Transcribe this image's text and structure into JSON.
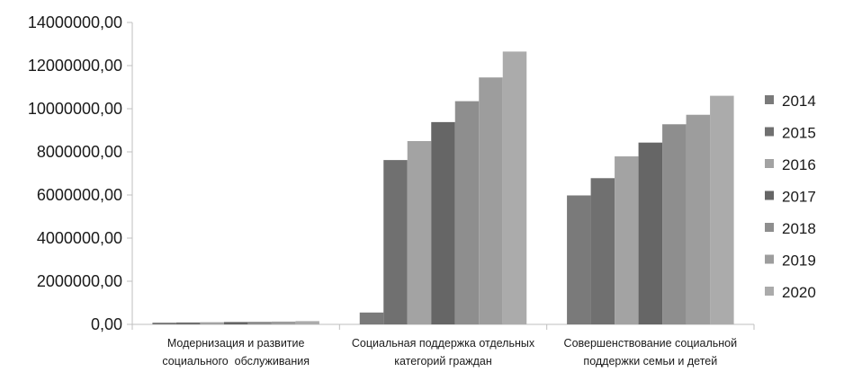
{
  "chart_data": {
    "type": "bar",
    "categories": [
      [
        "Модернизация и развитие",
        "социального  обслуживания"
      ],
      [
        "Социальная поддержка отдельных",
        "категорий граждан"
      ],
      [
        "Совершенствование социальной",
        "поддержки семьи и детей"
      ]
    ],
    "series": [
      {
        "name": "2014",
        "color": "#7a7a7a",
        "values": [
          80000,
          550000,
          5980000
        ]
      },
      {
        "name": "2015",
        "color": "#707070",
        "values": [
          90000,
          7620000,
          6780000
        ]
      },
      {
        "name": "2016",
        "color": "#a3a3a3",
        "values": [
          100000,
          8500000,
          7790000
        ]
      },
      {
        "name": "2017",
        "color": "#666666",
        "values": [
          110000,
          9380000,
          8430000
        ]
      },
      {
        "name": "2018",
        "color": "#8e8e8e",
        "values": [
          120000,
          10350000,
          9280000
        ]
      },
      {
        "name": "2019",
        "color": "#9d9d9d",
        "values": [
          130000,
          11450000,
          9720000
        ]
      },
      {
        "name": "2020",
        "color": "#ababab",
        "values": [
          150000,
          12650000,
          10600000
        ]
      }
    ],
    "yticks": [
      "0,00",
      "2000000,00",
      "4000000,00",
      "6000000,00",
      "8000000,00",
      "10000000,00",
      "12000000,00",
      "14000000,00"
    ],
    "ylim": [
      0,
      14000000
    ],
    "grid": false,
    "legend": "right",
    "title": "",
    "xlabel": "",
    "ylabel": ""
  }
}
